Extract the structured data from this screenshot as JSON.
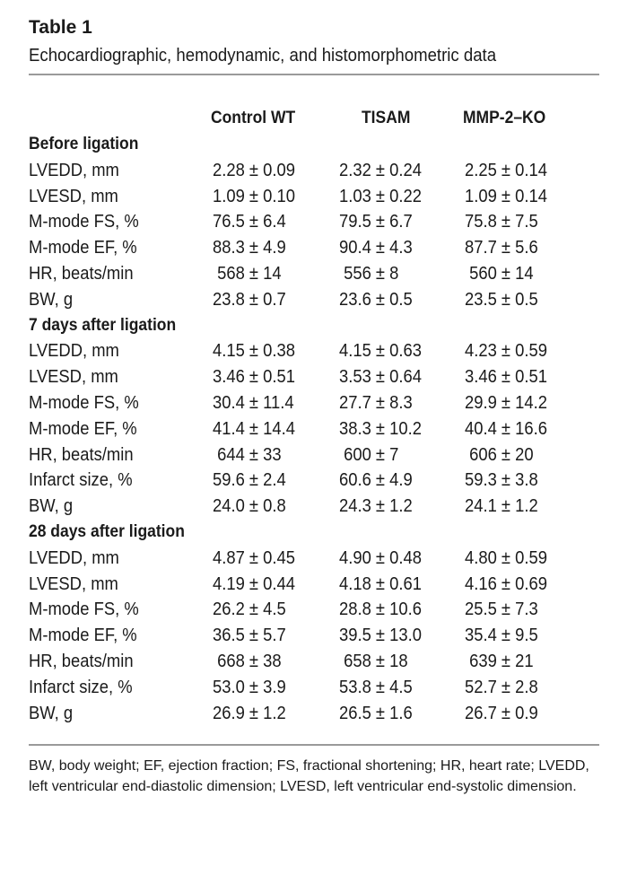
{
  "table": {
    "label": "Table 1",
    "caption": "Echocardiographic, hemodynamic, and histomorphometric data",
    "columns": [
      "Control WT",
      "TISAM",
      "MMP-2–KO"
    ],
    "sections": [
      {
        "title": "Before ligation",
        "rows": [
          {
            "label": "LVEDD, mm",
            "values": [
              "2.28 ± 0.09",
              "2.32 ± 0.24",
              "2.25 ± 0.14"
            ]
          },
          {
            "label": "LVESD, mm",
            "values": [
              "1.09 ± 0.10",
              "1.03 ± 0.22",
              "1.09 ± 0.14"
            ]
          },
          {
            "label": "M-mode FS, %",
            "values": [
              "76.5 ± 6.4",
              "79.5 ± 6.7",
              "75.8 ± 7.5"
            ]
          },
          {
            "label": "M-mode EF, %",
            "values": [
              "88.3 ± 4.9",
              "90.4 ± 4.3",
              "87.7 ± 5.6"
            ]
          },
          {
            "label": "HR, beats/min",
            "values": [
              " 568 ± 14",
              " 556 ± 8",
              " 560 ± 14"
            ]
          },
          {
            "label": "BW, g",
            "values": [
              "23.8 ± 0.7",
              "23.6 ± 0.5",
              "23.5 ± 0.5"
            ]
          }
        ]
      },
      {
        "title": "7 days after ligation",
        "rows": [
          {
            "label": "LVEDD, mm",
            "values": [
              "4.15 ± 0.38",
              "4.15 ± 0.63",
              "4.23 ± 0.59"
            ]
          },
          {
            "label": "LVESD, mm",
            "values": [
              "3.46 ± 0.51",
              "3.53 ± 0.64",
              "3.46 ± 0.51"
            ]
          },
          {
            "label": "M-mode FS, %",
            "values": [
              "30.4 ± 11.4",
              "27.7 ± 8.3",
              "29.9 ± 14.2"
            ]
          },
          {
            "label": "M-mode EF, %",
            "values": [
              "41.4 ± 14.4",
              "38.3 ± 10.2",
              "40.4 ± 16.6"
            ]
          },
          {
            "label": "HR, beats/min",
            "values": [
              " 644 ± 33",
              " 600 ± 7",
              " 606 ± 20"
            ]
          },
          {
            "label": "Infarct size, %",
            "values": [
              "59.6 ± 2.4",
              "60.6 ± 4.9",
              "59.3 ± 3.8"
            ]
          },
          {
            "label": "BW, g",
            "values": [
              "24.0 ± 0.8",
              "24.3 ± 1.2",
              "24.1 ± 1.2"
            ]
          }
        ]
      },
      {
        "title": "28 days after ligation",
        "rows": [
          {
            "label": "LVEDD, mm",
            "values": [
              "4.87 ± 0.45",
              "4.90 ± 0.48",
              "4.80 ± 0.59"
            ]
          },
          {
            "label": "LVESD, mm",
            "values": [
              "4.19 ± 0.44",
              "4.18 ± 0.61",
              "4.16 ± 0.69"
            ]
          },
          {
            "label": "M-mode FS, %",
            "values": [
              "26.2 ± 4.5",
              "28.8 ± 10.6",
              "25.5 ± 7.3"
            ]
          },
          {
            "label": "M-mode EF, %",
            "values": [
              "36.5 ± 5.7",
              "39.5 ± 13.0",
              "35.4 ± 9.5"
            ]
          },
          {
            "label": "HR, beats/min",
            "values": [
              " 668 ± 38",
              " 658 ± 18",
              " 639 ± 21"
            ]
          },
          {
            "label": "Infarct size, %",
            "values": [
              "53.0 ± 3.9",
              "53.8 ± 4.5",
              "52.7 ± 2.8"
            ]
          },
          {
            "label": "BW, g",
            "values": [
              "26.9 ± 1.2",
              "26.5 ± 1.6",
              "26.7 ± 0.9"
            ]
          }
        ]
      }
    ],
    "footnote": "BW, body weight; EF, ejection fraction; FS, fractional shortening; HR, heart rate; LVEDD, left ventricular end-diastolic dimension; LVESD, left ventricular end-systolic dimension."
  },
  "colors": {
    "text": "#1a1a1a",
    "rule": "#9a9a9a",
    "background": "#ffffff"
  }
}
